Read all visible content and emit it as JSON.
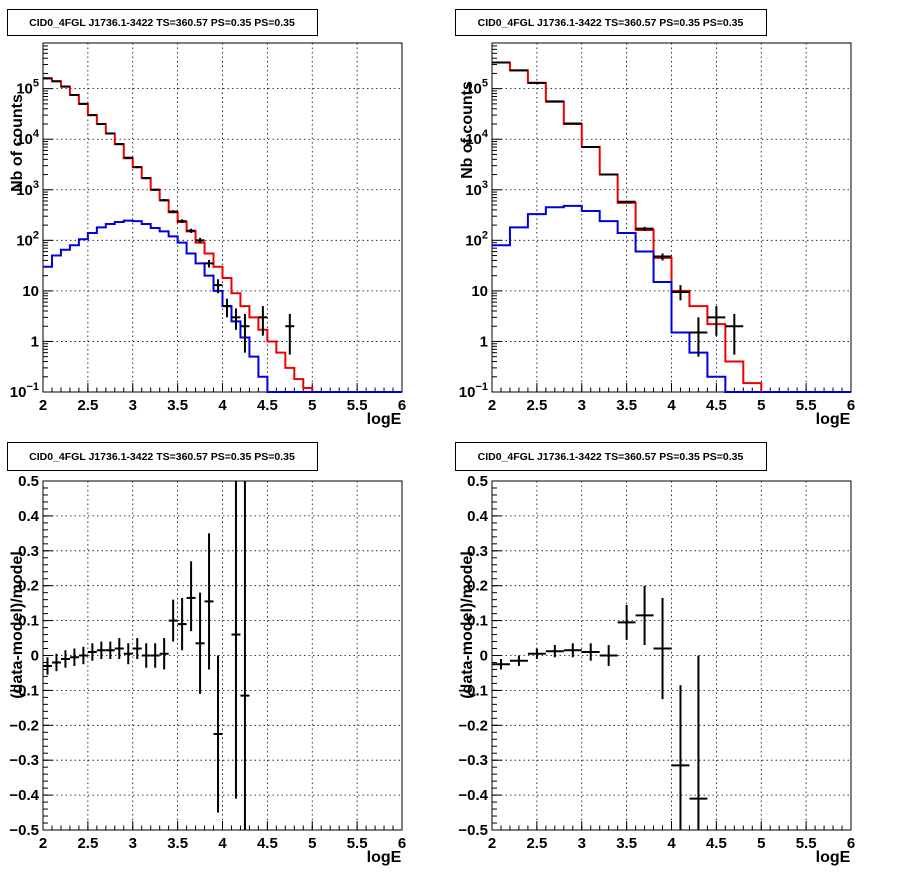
{
  "chart_data": [
    {
      "id": "counts-left",
      "type": "histogram",
      "title": "CID0_4FGL J1736.1-3422 TS=360.57 PS=0.35 PS=0.35",
      "xlabel": "logE",
      "ylabel": "Nb of counts",
      "xlim": [
        2,
        6
      ],
      "ylim": [
        0.1,
        800000
      ],
      "yscale": "log",
      "grid": true,
      "xticks": [
        "2",
        "2.5",
        "3",
        "3.5",
        "4",
        "4.5",
        "5",
        "5.5",
        "6"
      ],
      "yticks": [
        {
          "v": 0.1,
          "base": "10",
          "exp": "−1"
        },
        {
          "v": 1,
          "label": "1"
        },
        {
          "v": 10,
          "label": "10"
        },
        {
          "v": 100,
          "base": "10",
          "exp": "2"
        },
        {
          "v": 1000,
          "base": "10",
          "exp": "3"
        },
        {
          "v": 10000,
          "base": "10",
          "exp": "4"
        },
        {
          "v": 100000,
          "base": "10",
          "exp": "5"
        }
      ],
      "bin_edges": [
        2.0,
        2.1,
        2.2,
        2.3,
        2.4,
        2.5,
        2.6,
        2.7,
        2.8,
        2.9,
        3.0,
        3.1,
        3.2,
        3.3,
        3.4,
        3.5,
        3.6,
        3.7,
        3.8,
        3.9,
        4.0,
        4.1,
        4.2,
        4.3,
        4.4,
        4.5,
        4.6,
        4.7,
        4.8,
        4.9,
        5.0,
        5.1,
        5.2,
        5.3,
        5.4,
        5.5,
        5.6,
        5.7,
        5.8,
        5.9,
        6.0
      ],
      "series": [
        {
          "color": "#ee0000",
          "values": [
            160000,
            140000,
            110000,
            75000,
            50000,
            30000,
            20000,
            13000,
            8000,
            4200,
            2800,
            1700,
            1000,
            620,
            360,
            230,
            150,
            90,
            55,
            30,
            18,
            9,
            5,
            3,
            1.7,
            1,
            0.6,
            0.3,
            0.18,
            0.12,
            0.1,
            0.1,
            0.1,
            0.1,
            0.1,
            0.1,
            0.1,
            0.1,
            0.1,
            0.1
          ]
        },
        {
          "color": "#0000dd",
          "values": [
            30,
            50,
            65,
            80,
            105,
            140,
            180,
            210,
            230,
            245,
            240,
            210,
            175,
            150,
            120,
            90,
            55,
            35,
            20,
            10,
            5,
            2.5,
            1.2,
            0.5,
            0.2,
            0.1,
            0.1,
            0.1,
            0.1,
            0.1,
            0.1,
            0.1,
            0.1,
            0.1,
            0.1,
            0.1,
            0.1,
            0.1,
            0.1,
            0.1
          ]
        }
      ],
      "points": [
        {
          "x": 2.05,
          "y": 160000,
          "ylo": 155000,
          "yhi": 165000
        },
        {
          "x": 2.15,
          "y": 140000,
          "ylo": 135000,
          "yhi": 145000
        },
        {
          "x": 2.25,
          "y": 110000,
          "ylo": 106000,
          "yhi": 114000
        },
        {
          "x": 2.35,
          "y": 75000,
          "ylo": 72000,
          "yhi": 78000
        },
        {
          "x": 2.45,
          "y": 50000,
          "ylo": 48000,
          "yhi": 52000
        },
        {
          "x": 2.55,
          "y": 30000,
          "ylo": 29000,
          "yhi": 31000
        },
        {
          "x": 2.65,
          "y": 20000,
          "ylo": 19300,
          "yhi": 20700
        },
        {
          "x": 2.75,
          "y": 13000,
          "ylo": 12500,
          "yhi": 13500
        },
        {
          "x": 2.85,
          "y": 8000,
          "ylo": 7700,
          "yhi": 8300
        },
        {
          "x": 2.95,
          "y": 4300,
          "ylo": 4100,
          "yhi": 4500
        },
        {
          "x": 3.05,
          "y": 2800,
          "ylo": 2680,
          "yhi": 2920
        },
        {
          "x": 3.15,
          "y": 1700,
          "ylo": 1620,
          "yhi": 1780
        },
        {
          "x": 3.25,
          "y": 1000,
          "ylo": 950,
          "yhi": 1050
        },
        {
          "x": 3.35,
          "y": 620,
          "ylo": 585,
          "yhi": 655
        },
        {
          "x": 3.45,
          "y": 370,
          "ylo": 345,
          "yhi": 395
        },
        {
          "x": 3.55,
          "y": 240,
          "ylo": 220,
          "yhi": 260
        },
        {
          "x": 3.65,
          "y": 155,
          "ylo": 140,
          "yhi": 170
        },
        {
          "x": 3.75,
          "y": 100,
          "ylo": 88,
          "yhi": 112
        },
        {
          "x": 3.85,
          "y": 35,
          "ylo": 29,
          "yhi": 41
        },
        {
          "x": 3.95,
          "y": 13,
          "ylo": 9,
          "yhi": 17
        },
        {
          "x": 4.05,
          "y": 5,
          "ylo": 3,
          "yhi": 7
        },
        {
          "x": 4.15,
          "y": 3,
          "ylo": 1.7,
          "yhi": 4.5
        },
        {
          "x": 4.25,
          "y": 2,
          "ylo": 0.6,
          "yhi": 3.5
        },
        {
          "x": 4.45,
          "y": 3,
          "ylo": 1.3,
          "yhi": 5
        },
        {
          "x": 4.75,
          "y": 2,
          "ylo": 0.55,
          "yhi": 3.5
        }
      ]
    },
    {
      "id": "counts-right",
      "type": "histogram",
      "title": "CID0_4FGL J1736.1-3422 TS=360.57 PS=0.35 PS=0.35",
      "xlabel": "logE",
      "ylabel": "Nb of counts",
      "xlim": [
        2,
        6
      ],
      "ylim": [
        0.1,
        800000
      ],
      "yscale": "log",
      "grid": true,
      "xticks": [
        "2",
        "2.5",
        "3",
        "3.5",
        "4",
        "4.5",
        "5",
        "5.5",
        "6"
      ],
      "yticks": [
        {
          "v": 0.1,
          "base": "10",
          "exp": "−1"
        },
        {
          "v": 1,
          "label": "1"
        },
        {
          "v": 10,
          "label": "10"
        },
        {
          "v": 100,
          "base": "10",
          "exp": "2"
        },
        {
          "v": 1000,
          "base": "10",
          "exp": "3"
        },
        {
          "v": 10000,
          "base": "10",
          "exp": "4"
        },
        {
          "v": 100000,
          "base": "10",
          "exp": "5"
        }
      ],
      "bin_edges": [
        2.0,
        2.2,
        2.4,
        2.6,
        2.8,
        3.0,
        3.2,
        3.4,
        3.6,
        3.8,
        4.0,
        4.2,
        4.4,
        4.6,
        4.8,
        5.0,
        5.2,
        5.4,
        5.6,
        5.8,
        6.0
      ],
      "series": [
        {
          "color": "#ee0000",
          "values": [
            330000,
            230000,
            130000,
            55000,
            20000,
            7000,
            2000,
            550,
            160,
            45,
            10,
            5,
            2.2,
            0.4,
            0.15,
            0.1,
            0.1,
            0.1,
            0.1,
            0.1
          ]
        },
        {
          "color": "#0000dd",
          "values": [
            80,
            180,
            330,
            450,
            480,
            380,
            240,
            140,
            60,
            15,
            1.5,
            0.6,
            0.2,
            0.1,
            0.1,
            0.1,
            0.1,
            0.1,
            0.1,
            0.1
          ]
        }
      ],
      "points": [
        {
          "x": 2.1,
          "y": 330000,
          "ylo": 320000,
          "yhi": 340000
        },
        {
          "x": 2.3,
          "y": 230000,
          "ylo": 223000,
          "yhi": 237000
        },
        {
          "x": 2.5,
          "y": 130000,
          "ylo": 126000,
          "yhi": 134000
        },
        {
          "x": 2.7,
          "y": 56000,
          "ylo": 54000,
          "yhi": 58000
        },
        {
          "x": 2.9,
          "y": 20500,
          "ylo": 20000,
          "yhi": 21000
        },
        {
          "x": 3.1,
          "y": 7000,
          "ylo": 6800,
          "yhi": 7200
        },
        {
          "x": 3.3,
          "y": 2000,
          "ylo": 1930,
          "yhi": 2070
        },
        {
          "x": 3.5,
          "y": 580,
          "ylo": 550,
          "yhi": 610
        },
        {
          "x": 3.7,
          "y": 170,
          "ylo": 155,
          "yhi": 185
        },
        {
          "x": 3.9,
          "y": 48,
          "ylo": 40,
          "yhi": 55
        },
        {
          "x": 4.1,
          "y": 9.5,
          "ylo": 6.5,
          "yhi": 13
        },
        {
          "x": 4.3,
          "y": 1.5,
          "ylo": 0.5,
          "yhi": 3
        },
        {
          "x": 4.5,
          "y": 3,
          "ylo": 1.3,
          "yhi": 5
        },
        {
          "x": 4.7,
          "y": 2,
          "ylo": 0.55,
          "yhi": 3.5
        }
      ]
    },
    {
      "id": "residuals-left",
      "type": "scatter",
      "title": "CID0_4FGL J1736.1-3422 TS=360.57 PS=0.35 PS=0.35",
      "xlabel": "logE",
      "ylabel": "(data-model)/model",
      "xlim": [
        2,
        6
      ],
      "ylim": [
        -0.5,
        0.5
      ],
      "grid": true,
      "xticks": [
        "2",
        "2.5",
        "3",
        "3.5",
        "4",
        "4.5",
        "5",
        "5.5",
        "6"
      ],
      "yticks": [
        "−0.5",
        "−0.4",
        "−0.3",
        "−0.2",
        "−0.1",
        "0",
        "0.1",
        "0.2",
        "0.3",
        "0.4",
        "0.5"
      ],
      "points": [
        {
          "x": 2.05,
          "y": -0.03,
          "ylo": -0.055,
          "yhi": -0.005
        },
        {
          "x": 2.15,
          "y": -0.02,
          "ylo": -0.045,
          "yhi": 0.005
        },
        {
          "x": 2.25,
          "y": -0.01,
          "ylo": -0.035,
          "yhi": 0.015
        },
        {
          "x": 2.35,
          "y": -0.005,
          "ylo": -0.03,
          "yhi": 0.02
        },
        {
          "x": 2.45,
          "y": 0.0,
          "ylo": -0.025,
          "yhi": 0.025
        },
        {
          "x": 2.55,
          "y": 0.01,
          "ylo": -0.015,
          "yhi": 0.035
        },
        {
          "x": 2.65,
          "y": 0.015,
          "ylo": -0.01,
          "yhi": 0.04
        },
        {
          "x": 2.75,
          "y": 0.015,
          "ylo": -0.01,
          "yhi": 0.04
        },
        {
          "x": 2.85,
          "y": 0.02,
          "ylo": -0.01,
          "yhi": 0.05
        },
        {
          "x": 2.95,
          "y": 0.005,
          "ylo": -0.025,
          "yhi": 0.035
        },
        {
          "x": 3.05,
          "y": 0.02,
          "ylo": -0.01,
          "yhi": 0.05
        },
        {
          "x": 3.15,
          "y": 0.0,
          "ylo": -0.035,
          "yhi": 0.035
        },
        {
          "x": 3.25,
          "y": 0.0,
          "ylo": -0.035,
          "yhi": 0.035
        },
        {
          "x": 3.35,
          "y": 0.005,
          "ylo": -0.04,
          "yhi": 0.05
        },
        {
          "x": 3.45,
          "y": 0.1,
          "ylo": 0.04,
          "yhi": 0.16
        },
        {
          "x": 3.55,
          "y": 0.09,
          "ylo": 0.015,
          "yhi": 0.165
        },
        {
          "x": 3.65,
          "y": 0.165,
          "ylo": 0.07,
          "yhi": 0.27
        },
        {
          "x": 3.75,
          "y": 0.035,
          "ylo": -0.11,
          "yhi": 0.18
        },
        {
          "x": 3.85,
          "y": 0.155,
          "ylo": -0.04,
          "yhi": 0.35
        },
        {
          "x": 3.95,
          "y": -0.225,
          "ylo": -0.45,
          "yhi": -0.0
        },
        {
          "x": 4.15,
          "y": 0.06,
          "ylo": -0.41,
          "yhi": 0.5
        },
        {
          "x": 4.25,
          "y": -0.115,
          "ylo": -0.5,
          "yhi": 0.5
        }
      ]
    },
    {
      "id": "residuals-right",
      "type": "scatter",
      "title": "CID0_4FGL J1736.1-3422 TS=360.57 PS=0.35 PS=0.35",
      "xlabel": "logE",
      "ylabel": "(data-model)/model",
      "xlim": [
        2,
        6
      ],
      "ylim": [
        -0.5,
        0.5
      ],
      "grid": true,
      "xticks": [
        "2",
        "2.5",
        "3",
        "3.5",
        "4",
        "4.5",
        "5",
        "5.5",
        "6"
      ],
      "yticks": [
        "−0.5",
        "−0.4",
        "−0.3",
        "−0.2",
        "−0.1",
        "0",
        "0.1",
        "0.2",
        "0.3",
        "0.4",
        "0.5"
      ],
      "points": [
        {
          "x": 2.1,
          "y": -0.025,
          "ylo": -0.04,
          "yhi": -0.01
        },
        {
          "x": 2.3,
          "y": -0.015,
          "ylo": -0.03,
          "yhi": 0.0
        },
        {
          "x": 2.5,
          "y": 0.005,
          "ylo": -0.01,
          "yhi": 0.02
        },
        {
          "x": 2.7,
          "y": 0.012,
          "ylo": -0.005,
          "yhi": 0.03
        },
        {
          "x": 2.9,
          "y": 0.015,
          "ylo": -0.005,
          "yhi": 0.035
        },
        {
          "x": 3.1,
          "y": 0.01,
          "ylo": -0.015,
          "yhi": 0.035
        },
        {
          "x": 3.3,
          "y": 0.0,
          "ylo": -0.03,
          "yhi": 0.03
        },
        {
          "x": 3.5,
          "y": 0.095,
          "ylo": 0.045,
          "yhi": 0.145
        },
        {
          "x": 3.7,
          "y": 0.115,
          "ylo": 0.03,
          "yhi": 0.2
        },
        {
          "x": 3.9,
          "y": 0.02,
          "ylo": -0.125,
          "yhi": 0.165
        },
        {
          "x": 4.1,
          "y": -0.315,
          "ylo": -0.5,
          "yhi": -0.085
        },
        {
          "x": 4.3,
          "y": -0.41,
          "ylo": -0.5,
          "yhi": 0.0
        }
      ]
    }
  ]
}
